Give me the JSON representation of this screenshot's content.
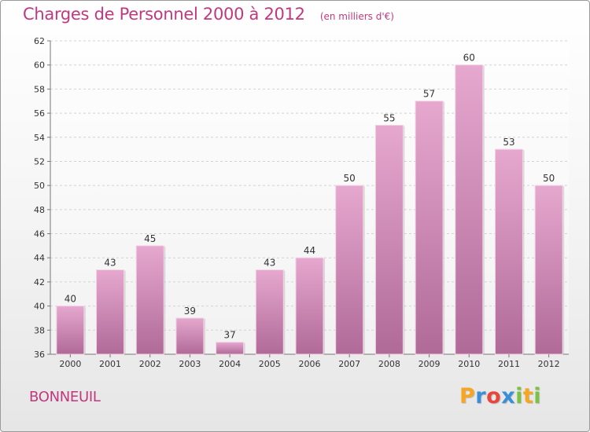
{
  "title": "Charges de Personnel 2000 à 2012",
  "subtitle": "(en milliers d'€)",
  "city": "BONNEUIL",
  "logo": {
    "letters": [
      "P",
      "r",
      "o",
      "x",
      "i",
      "t",
      "i"
    ],
    "colors": [
      "#f5a623",
      "#3a8fd9",
      "#e8453c",
      "#3a8fd9",
      "#7cc242",
      "#f5a623",
      "#7cc242"
    ]
  },
  "colors": {
    "bar_top": "#e6a8cf",
    "bar_bottom": "#b06a98",
    "accent": "#c0397f"
  },
  "chart_data": {
    "type": "bar",
    "categories": [
      "2000",
      "2001",
      "2002",
      "2003",
      "2004",
      "2005",
      "2006",
      "2007",
      "2008",
      "2009",
      "2010",
      "2011",
      "2012"
    ],
    "values": [
      40,
      43,
      45,
      39,
      37,
      43,
      44,
      50,
      55,
      57,
      60,
      53,
      50
    ],
    "ylim": [
      36,
      62
    ],
    "yticks": [
      36,
      38,
      40,
      42,
      44,
      46,
      48,
      50,
      52,
      54,
      56,
      58,
      60,
      62
    ],
    "grid": true,
    "data_labels": true
  }
}
